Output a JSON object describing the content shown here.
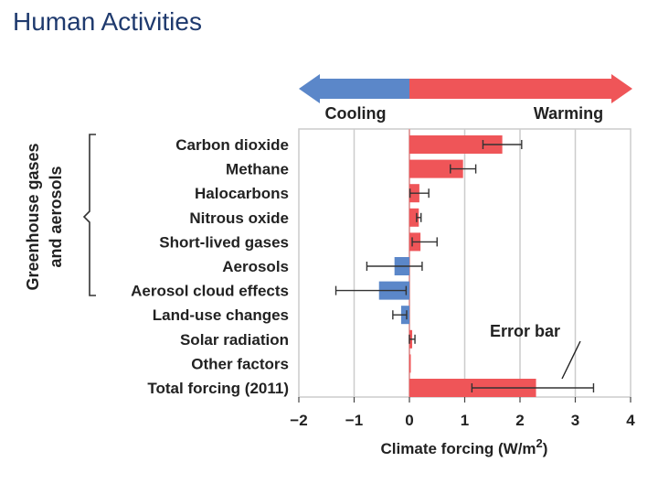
{
  "slide": {
    "title": "Human Activities"
  },
  "chart_data": {
    "type": "bar",
    "orientation": "horizontal",
    "categories": [
      "Carbon dioxide",
      "Methane",
      "Halocarbons",
      "Nitrous oxide",
      "Short-lived gases",
      "Aerosols",
      "Aerosol cloud effects",
      "Land-use changes",
      "Solar radiation",
      "Other factors",
      "Total forcing (2011)"
    ],
    "values": [
      1.68,
      0.97,
      0.18,
      0.17,
      0.2,
      -0.27,
      -0.55,
      -0.15,
      0.05,
      0.02,
      2.29
    ],
    "error_low": [
      1.33,
      0.74,
      0.01,
      0.13,
      0.05,
      -0.77,
      -1.33,
      -0.3,
      0.0,
      0.0,
      1.13
    ],
    "error_high": [
      2.03,
      1.2,
      0.35,
      0.21,
      0.5,
      0.23,
      -0.06,
      -0.05,
      0.1,
      0.0,
      3.33
    ],
    "xlim": [
      -2,
      4
    ],
    "xticks": [
      "−2",
      "−1",
      "0",
      "1",
      "2",
      "3",
      "4"
    ],
    "xtick_values": [
      -2,
      -1,
      0,
      1,
      2,
      3,
      4
    ],
    "xlabel": "Climate forcing (W/m",
    "xlabel_sup": "2",
    "xlabel_close": ")",
    "grid": true,
    "colors": {
      "warming": "#ef5558",
      "cooling": "#5b87c9",
      "grid": "#cccccc",
      "zero_line": "#e1a3a3"
    },
    "arrows": {
      "cooling_label": "Cooling",
      "warming_label": "Warming"
    },
    "group_label_line1": "Greenhouse gases",
    "group_label_line2": "and aerosols",
    "annotation": "Error bar"
  }
}
